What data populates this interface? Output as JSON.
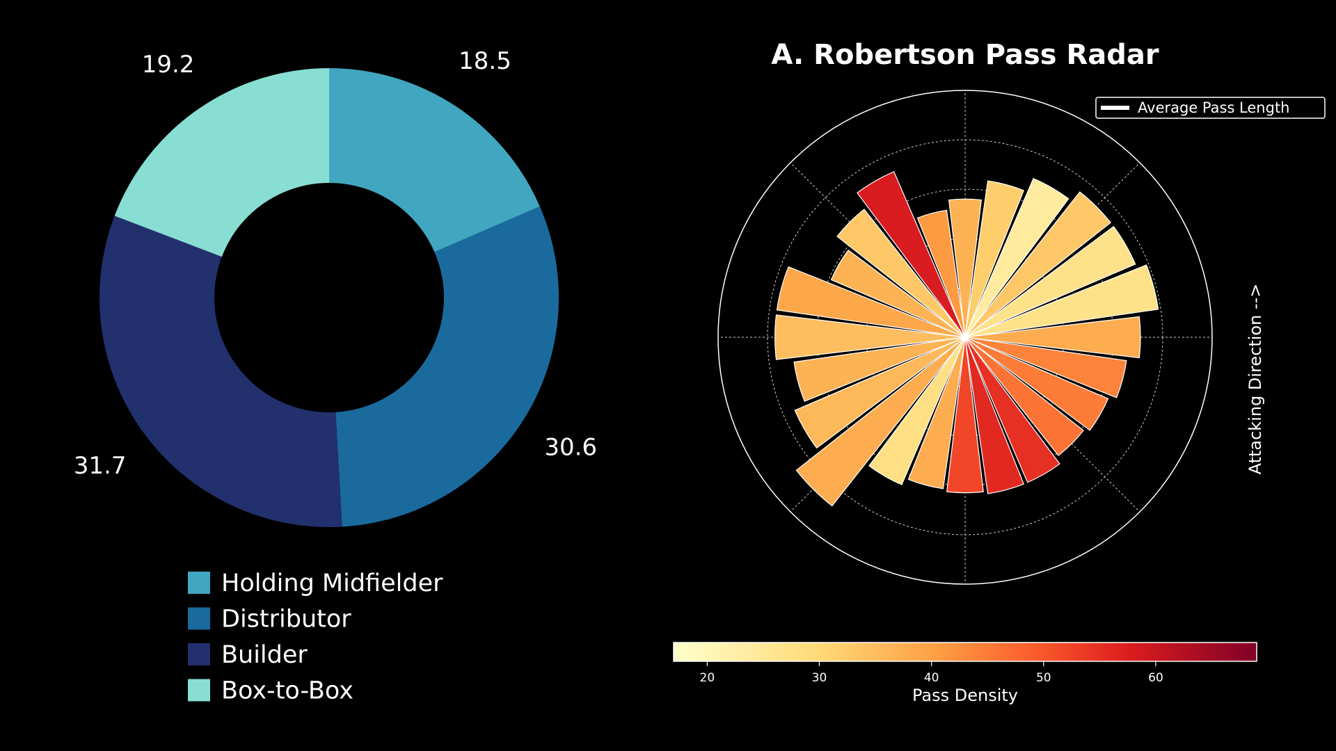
{
  "chart_data": [
    {
      "type": "pie",
      "donut": true,
      "categories": [
        "Holding Midfielder",
        "Distributor",
        "Builder",
        "Box-to-Box"
      ],
      "values": [
        18.5,
        30.6,
        31.7,
        19.2
      ],
      "value_labels": [
        "18.5",
        "30.6",
        "31.7",
        "19.2"
      ],
      "colors": [
        "#41a6c0",
        "#1a6a9e",
        "#22306e",
        "#89ded4"
      ],
      "legend_placement": "bottom",
      "direction": "clockwise",
      "start_angle": "top"
    },
    {
      "type": "bar",
      "subtype": "polar",
      "title": "A. Robertson Pass Radar",
      "side_label": "Attacking Direction -->",
      "legend_label": "Average Pass Length",
      "colorbar": {
        "label": "Pass Density",
        "range": [
          17,
          69
        ],
        "ticks": [
          "20",
          "30",
          "40",
          "50",
          "60"
        ],
        "colormap": "YlOrRd"
      },
      "radial_grid_count": 5,
      "angular_grid_count": 8,
      "bins": 24,
      "zero_direction": "right",
      "angle_direction": "counterclockwise",
      "radii": [
        0.71,
        0.79,
        0.75,
        0.75,
        0.7,
        0.64,
        0.56,
        0.52,
        0.73,
        0.66,
        0.59,
        0.77,
        0.77,
        0.7,
        0.75,
        0.87,
        0.65,
        0.62,
        0.63,
        0.64,
        0.64,
        0.61,
        0.63,
        0.66
      ],
      "density": [
        38,
        27,
        27,
        33,
        24,
        32,
        37,
        41,
        58,
        33,
        37,
        39,
        35,
        37,
        36,
        38,
        28,
        38,
        52,
        56,
        55,
        46,
        45,
        44
      ]
    }
  ]
}
